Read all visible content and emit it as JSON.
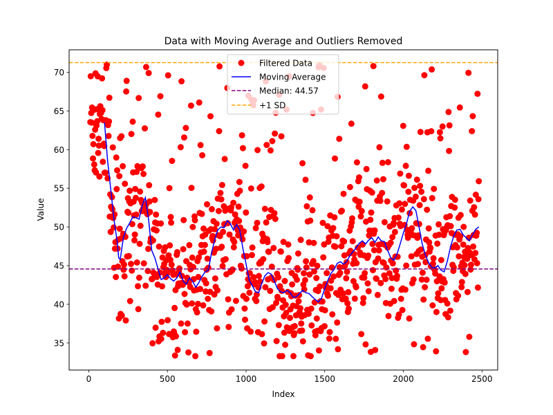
{
  "chart_data": {
    "type": "scatter",
    "title": "Data with Moving Average and Outliers Removed",
    "xlabel": "Index",
    "ylabel": "Value",
    "xlim": [
      -125,
      2600
    ],
    "ylim": [
      31.5,
      72.9
    ],
    "xticks": [
      0,
      500,
      1000,
      1500,
      2000,
      2500
    ],
    "yticks": [
      35,
      40,
      45,
      50,
      55,
      60,
      65,
      70
    ],
    "grid": false,
    "legend_position": "top-center",
    "colors": {
      "scatter": "#ff0000",
      "moving_average": "#0000ff",
      "median": "#800080",
      "sd": "#ffa500"
    },
    "series": [
      {
        "name": "Filtered Data",
        "kind": "scatter",
        "note_generation": "dense random scatter across index 0-2480, values 33-71",
        "n_points": 2480,
        "y_min": 33.3,
        "y_max": 71.0
      },
      {
        "name": "Moving Average",
        "kind": "line",
        "x": [
          100,
          120,
          140,
          160,
          180,
          190,
          200,
          220,
          240,
          260,
          280,
          300,
          320,
          340,
          360,
          380,
          400,
          420,
          440,
          460,
          480,
          500,
          520,
          540,
          560,
          580,
          600,
          620,
          640,
          660,
          680,
          700,
          720,
          740,
          760,
          780,
          800,
          820,
          840,
          860,
          880,
          900,
          920,
          940,
          960,
          980,
          1000,
          1020,
          1040,
          1060,
          1080,
          1100,
          1120,
          1140,
          1160,
          1180,
          1200,
          1220,
          1240,
          1260,
          1280,
          1300,
          1320,
          1340,
          1360,
          1380,
          1400,
          1420,
          1440,
          1460,
          1480,
          1500,
          1520,
          1540,
          1560,
          1580,
          1600,
          1620,
          1640,
          1660,
          1680,
          1700,
          1720,
          1740,
          1760,
          1780,
          1800,
          1820,
          1840,
          1860,
          1880,
          1900,
          1920,
          1940,
          1960,
          1980,
          2000,
          2020,
          2040,
          2060,
          2080,
          2100,
          2120,
          2140,
          2160,
          2180,
          2200,
          2220,
          2240,
          2260,
          2280,
          2300,
          2320,
          2340,
          2360,
          2380,
          2400,
          2420,
          2440,
          2460,
          2480
        ],
        "y": [
          63.5,
          58.5,
          54.8,
          51.0,
          48.2,
          46.0,
          45.8,
          48.6,
          49.8,
          50.5,
          51.3,
          51.2,
          51.0,
          52.8,
          53.8,
          51.0,
          47.0,
          46.0,
          44.6,
          43.2,
          43.4,
          43.8,
          43.3,
          43.0,
          43.4,
          44.2,
          43.0,
          42.6,
          43.4,
          43.0,
          42.2,
          42.8,
          43.6,
          44.2,
          44.4,
          46.6,
          48.3,
          49.6,
          50.0,
          49.9,
          50.8,
          50.4,
          49.6,
          50.3,
          49.6,
          47.2,
          45.2,
          43.1,
          42.4,
          41.6,
          41.5,
          42.7,
          43.7,
          44.1,
          43.9,
          43.0,
          42.0,
          41.6,
          41.5,
          41.8,
          41.5,
          40.9,
          41.0,
          41.4,
          41.8,
          41.5,
          41.4,
          41.0,
          40.6,
          40.3,
          40.8,
          42.0,
          43.1,
          44.0,
          44.5,
          45.3,
          45.5,
          45.2,
          45.5,
          46.3,
          46.8,
          47.3,
          47.9,
          48.2,
          47.8,
          48.3,
          48.6,
          48.0,
          48.7,
          48.2,
          48.1,
          47.0,
          46.0,
          45.7,
          46.5,
          47.8,
          49.2,
          50.4,
          52.0,
          52.6,
          52.1,
          50.0,
          47.8,
          46.4,
          45.4,
          44.8,
          44.7,
          45.0,
          44.4,
          44.2,
          45.6,
          47.4,
          48.8,
          49.6,
          49.7,
          49.0,
          48.6,
          48.2,
          49.0,
          49.7,
          50.0
        ]
      },
      {
        "name": "Median: 44.57",
        "kind": "hline",
        "value": 44.57
      },
      {
        "name": "+1 SD",
        "kind": "hline",
        "value": 71.25
      }
    ]
  }
}
